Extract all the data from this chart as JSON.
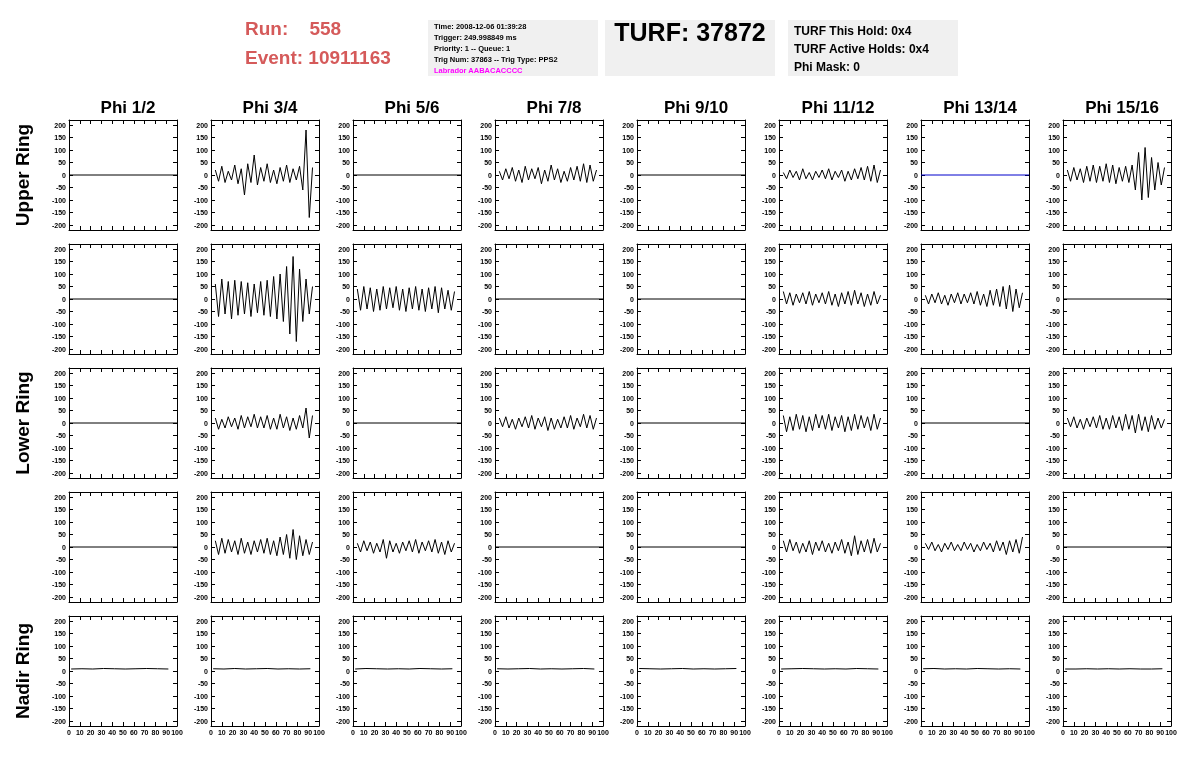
{
  "chart_data": [
    {
      "type": "line",
      "title": "Phi 1/2",
      "ylabel": "Upper Ring",
      "annotations": [
        "Run:    558",
        "Event: 10911163",
        "Time: 2008-12-06 01:39:28",
        "Trigger: 249.998849 ms",
        "Priority: 1 -- Queue: 1",
        "Trig Num: 37863 -- Trig Type: PPS2",
        "Labrador AABACACCCC",
        "TURF: 37872",
        "TURF This Hold: 0x4",
        "TURF Active Holds: 0x4",
        "Phi Mask: 0"
      ],
      "tick_labels": "y",
      "xlim": [
        0,
        100
      ],
      "xticks": [
        0,
        10,
        20,
        30,
        40,
        50,
        60,
        70,
        80,
        90,
        100
      ],
      "ylim": [
        -220,
        220
      ],
      "yticks": [
        -200,
        -150,
        -100,
        -50,
        0,
        50,
        100,
        150,
        200
      ],
      "color": "#000000",
      "x": [
        0,
        100
      ],
      "values": [
        0,
        0
      ]
    },
    {
      "type": "line",
      "title": "Phi 3/4",
      "tick_labels": "y",
      "xlim": [
        0,
        100
      ],
      "xticks": [
        0,
        10,
        20,
        30,
        40,
        50,
        60,
        70,
        80,
        90,
        100
      ],
      "ylim": [
        -220,
        220
      ],
      "yticks": [
        -200,
        -150,
        -100,
        -50,
        0,
        50,
        100,
        150,
        200
      ],
      "color": "#000000",
      "x": [
        4,
        7,
        10,
        13,
        16,
        19,
        22,
        25,
        28,
        31,
        34,
        37,
        40,
        43,
        46,
        49,
        52,
        55,
        58,
        61,
        64,
        67,
        70,
        73,
        76,
        79,
        82,
        85,
        88,
        91,
        94
      ],
      "values": [
        20,
        -25,
        35,
        -30,
        15,
        -20,
        40,
        -35,
        25,
        -80,
        45,
        -30,
        80,
        -40,
        30,
        -25,
        45,
        -30,
        20,
        -35,
        30,
        -25,
        40,
        -30,
        25,
        -20,
        35,
        -60,
        180,
        -170,
        30
      ]
    },
    {
      "type": "line",
      "title": "Phi 5/6",
      "tick_labels": "y",
      "xlim": [
        0,
        100
      ],
      "xticks": [
        0,
        10,
        20,
        30,
        40,
        50,
        60,
        70,
        80,
        90,
        100
      ],
      "ylim": [
        -220,
        220
      ],
      "yticks": [
        -200,
        -150,
        -100,
        -50,
        0,
        50,
        100,
        150,
        200
      ],
      "color": "#000000",
      "x": [
        0,
        100
      ],
      "values": [
        0,
        0
      ]
    },
    {
      "type": "line",
      "title": "Phi 7/8",
      "tick_labels": "y",
      "xlim": [
        0,
        100
      ],
      "xticks": [
        0,
        10,
        20,
        30,
        40,
        50,
        60,
        70,
        80,
        90,
        100
      ],
      "ylim": [
        -220,
        220
      ],
      "yticks": [
        -200,
        -150,
        -100,
        -50,
        0,
        50,
        100,
        150,
        200
      ],
      "color": "#000000",
      "x": [
        4,
        7,
        10,
        13,
        16,
        19,
        22,
        25,
        28,
        31,
        34,
        37,
        40,
        43,
        46,
        49,
        52,
        55,
        58,
        61,
        64,
        67,
        70,
        73,
        76,
        79,
        82,
        85,
        88,
        91,
        94
      ],
      "values": [
        15,
        -20,
        25,
        -15,
        30,
        -25,
        20,
        -30,
        35,
        -20,
        25,
        -15,
        30,
        -35,
        20,
        -25,
        40,
        -20,
        25,
        -30,
        15,
        -25,
        30,
        -20,
        35,
        -25,
        45,
        -30,
        40,
        -25,
        20
      ]
    },
    {
      "type": "line",
      "title": "Phi 9/10",
      "tick_labels": "y",
      "xlim": [
        0,
        100
      ],
      "xticks": [
        0,
        10,
        20,
        30,
        40,
        50,
        60,
        70,
        80,
        90,
        100
      ],
      "ylim": [
        -220,
        220
      ],
      "yticks": [
        -200,
        -150,
        -100,
        -50,
        0,
        50,
        100,
        150,
        200
      ],
      "color": "#000000",
      "x": [
        0,
        100
      ],
      "values": [
        0,
        0
      ]
    },
    {
      "type": "line",
      "title": "Phi 11/12",
      "tick_labels": "y",
      "xlim": [
        0,
        100
      ],
      "xticks": [
        0,
        10,
        20,
        30,
        40,
        50,
        60,
        70,
        80,
        90,
        100
      ],
      "ylim": [
        -220,
        220
      ],
      "yticks": [
        -200,
        -150,
        -100,
        -50,
        0,
        50,
        100,
        150,
        200
      ],
      "color": "#000000",
      "x": [
        4,
        7,
        10,
        13,
        16,
        19,
        22,
        25,
        28,
        31,
        34,
        37,
        40,
        43,
        46,
        49,
        52,
        55,
        58,
        61,
        64,
        67,
        70,
        73,
        76,
        79,
        82,
        85,
        88,
        91,
        94
      ],
      "values": [
        10,
        -15,
        20,
        -10,
        15,
        -20,
        25,
        -15,
        10,
        -20,
        15,
        -10,
        20,
        -15,
        25,
        -20,
        15,
        -10,
        20,
        -25,
        15,
        -20,
        25,
        -15,
        30,
        -20,
        35,
        -25,
        40,
        -30,
        20
      ]
    },
    {
      "type": "line",
      "title": "Phi 13/14",
      "tick_labels": "y",
      "xlim": [
        0,
        100
      ],
      "xticks": [
        0,
        10,
        20,
        30,
        40,
        50,
        60,
        70,
        80,
        90,
        100
      ],
      "ylim": [
        -220,
        220
      ],
      "yticks": [
        -200,
        -150,
        -100,
        -50,
        0,
        50,
        100,
        150,
        200
      ],
      "color": "#0000cc",
      "x": [
        0,
        100
      ],
      "values": [
        0,
        0
      ]
    },
    {
      "type": "line",
      "title": "Phi 15/16",
      "tick_labels": "y",
      "xlim": [
        0,
        100
      ],
      "xticks": [
        0,
        10,
        20,
        30,
        40,
        50,
        60,
        70,
        80,
        90,
        100
      ],
      "ylim": [
        -220,
        220
      ],
      "yticks": [
        -200,
        -150,
        -100,
        -50,
        0,
        50,
        100,
        150,
        200
      ],
      "color": "#000000",
      "x": [
        4,
        7,
        10,
        13,
        16,
        19,
        22,
        25,
        28,
        31,
        34,
        37,
        40,
        43,
        46,
        49,
        52,
        55,
        58,
        61,
        64,
        67,
        70,
        73,
        76,
        79,
        82,
        85,
        88,
        91,
        94
      ],
      "values": [
        20,
        -25,
        30,
        -20,
        25,
        -30,
        35,
        -25,
        40,
        -30,
        35,
        -25,
        45,
        -30,
        40,
        -35,
        30,
        -25,
        35,
        -30,
        40,
        -60,
        90,
        -100,
        110,
        -90,
        70,
        -60,
        50,
        -40,
        30
      ]
    },
    {
      "type": "line",
      "tick_labels": "y",
      "xlim": [
        0,
        100
      ],
      "xticks": [
        0,
        10,
        20,
        30,
        40,
        50,
        60,
        70,
        80,
        90,
        100
      ],
      "ylim": [
        -220,
        220
      ],
      "yticks": [
        -200,
        -150,
        -100,
        -50,
        0,
        50,
        100,
        150,
        200
      ],
      "color": "#000000",
      "x": [
        0,
        100
      ],
      "values": [
        0,
        0
      ]
    },
    {
      "type": "line",
      "tick_labels": "y",
      "xlim": [
        0,
        100
      ],
      "xticks": [
        0,
        10,
        20,
        30,
        40,
        50,
        60,
        70,
        80,
        90,
        100
      ],
      "ylim": [
        -220,
        220
      ],
      "yticks": [
        -200,
        -150,
        -100,
        -50,
        0,
        50,
        100,
        150,
        200
      ],
      "color": "#000000",
      "x": [
        4,
        7,
        10,
        13,
        16,
        19,
        22,
        25,
        28,
        31,
        34,
        37,
        40,
        43,
        46,
        49,
        52,
        55,
        58,
        61,
        64,
        67,
        70,
        73,
        76,
        79,
        82,
        85,
        88,
        91,
        94
      ],
      "values": [
        60,
        -70,
        80,
        -60,
        70,
        -80,
        75,
        -65,
        70,
        -60,
        65,
        -70,
        60,
        -55,
        70,
        -65,
        75,
        -70,
        90,
        -80,
        100,
        -90,
        130,
        -140,
        170,
        -170,
        120,
        -90,
        80,
        -60,
        50
      ]
    },
    {
      "type": "line",
      "tick_labels": "y",
      "xlim": [
        0,
        100
      ],
      "xticks": [
        0,
        10,
        20,
        30,
        40,
        50,
        60,
        70,
        80,
        90,
        100
      ],
      "ylim": [
        -220,
        220
      ],
      "yticks": [
        -200,
        -150,
        -100,
        -50,
        0,
        50,
        100,
        150,
        200
      ],
      "color": "#000000",
      "x": [
        4,
        7,
        10,
        13,
        16,
        19,
        22,
        25,
        28,
        31,
        34,
        37,
        40,
        43,
        46,
        49,
        52,
        55,
        58,
        61,
        64,
        67,
        70,
        73,
        76,
        79,
        82,
        85,
        88,
        91,
        94
      ],
      "values": [
        40,
        -45,
        50,
        -40,
        45,
        -50,
        40,
        -45,
        50,
        -40,
        45,
        -35,
        50,
        -45,
        40,
        -50,
        45,
        -40,
        50,
        -45,
        40,
        -50,
        45,
        -40,
        50,
        -55,
        45,
        -40,
        35,
        -45,
        30
      ]
    },
    {
      "type": "line",
      "tick_labels": "y",
      "xlim": [
        0,
        100
      ],
      "xticks": [
        0,
        10,
        20,
        30,
        40,
        50,
        60,
        70,
        80,
        90,
        100
      ],
      "ylim": [
        -220,
        220
      ],
      "yticks": [
        -200,
        -150,
        -100,
        -50,
        0,
        50,
        100,
        150,
        200
      ],
      "color": "#000000",
      "x": [
        0,
        100
      ],
      "values": [
        0,
        0
      ]
    },
    {
      "type": "line",
      "tick_labels": "y",
      "xlim": [
        0,
        100
      ],
      "xticks": [
        0,
        10,
        20,
        30,
        40,
        50,
        60,
        70,
        80,
        90,
        100
      ],
      "ylim": [
        -220,
        220
      ],
      "yticks": [
        -200,
        -150,
        -100,
        -50,
        0,
        50,
        100,
        150,
        200
      ],
      "color": "#000000",
      "x": [
        0,
        100
      ],
      "values": [
        0,
        0
      ]
    },
    {
      "type": "line",
      "tick_labels": "y",
      "xlim": [
        0,
        100
      ],
      "xticks": [
        0,
        10,
        20,
        30,
        40,
        50,
        60,
        70,
        80,
        90,
        100
      ],
      "ylim": [
        -220,
        220
      ],
      "yticks": [
        -200,
        -150,
        -100,
        -50,
        0,
        50,
        100,
        150,
        200
      ],
      "color": "#000000",
      "x": [
        4,
        7,
        10,
        13,
        16,
        19,
        22,
        25,
        28,
        31,
        34,
        37,
        40,
        43,
        46,
        49,
        52,
        55,
        58,
        61,
        64,
        67,
        70,
        73,
        76,
        79,
        82,
        85,
        88,
        91,
        94
      ],
      "values": [
        30,
        -20,
        25,
        -25,
        20,
        -15,
        25,
        -20,
        30,
        -25,
        20,
        -15,
        25,
        -20,
        30,
        -25,
        20,
        -30,
        25,
        -20,
        30,
        -25,
        35,
        -20,
        25,
        -30,
        20,
        -25,
        30,
        -20,
        15
      ]
    },
    {
      "type": "line",
      "tick_labels": "y",
      "xlim": [
        0,
        100
      ],
      "xticks": [
        0,
        10,
        20,
        30,
        40,
        50,
        60,
        70,
        80,
        90,
        100
      ],
      "ylim": [
        -220,
        220
      ],
      "yticks": [
        -200,
        -150,
        -100,
        -50,
        0,
        50,
        100,
        150,
        200
      ],
      "color": "#000000",
      "x": [
        4,
        7,
        10,
        13,
        16,
        19,
        22,
        25,
        28,
        31,
        34,
        37,
        40,
        43,
        46,
        49,
        52,
        55,
        58,
        61,
        64,
        67,
        70,
        73,
        76,
        79,
        82,
        85,
        88,
        91,
        94
      ],
      "values": [
        15,
        -20,
        20,
        -15,
        25,
        -20,
        15,
        -25,
        20,
        -15,
        25,
        -20,
        20,
        -15,
        25,
        -20,
        30,
        -25,
        20,
        -30,
        35,
        -25,
        40,
        -30,
        50,
        -40,
        55,
        -50,
        40,
        -35,
        25
      ]
    },
    {
      "type": "line",
      "tick_labels": "y",
      "xlim": [
        0,
        100
      ],
      "xticks": [
        0,
        10,
        20,
        30,
        40,
        50,
        60,
        70,
        80,
        90,
        100
      ],
      "ylim": [
        -220,
        220
      ],
      "yticks": [
        -200,
        -150,
        -100,
        -50,
        0,
        50,
        100,
        150,
        200
      ],
      "color": "#000000",
      "x": [
        0,
        100
      ],
      "values": [
        0,
        0
      ]
    },
    {
      "type": "line",
      "ylabel": "Lower Ring",
      "tick_labels": "y",
      "xlim": [
        0,
        100
      ],
      "xticks": [
        0,
        10,
        20,
        30,
        40,
        50,
        60,
        70,
        80,
        90,
        100
      ],
      "ylim": [
        -220,
        220
      ],
      "yticks": [
        -200,
        -150,
        -100,
        -50,
        0,
        50,
        100,
        150,
        200
      ],
      "color": "#000000",
      "x": [
        0,
        100
      ],
      "values": [
        0,
        0
      ]
    },
    {
      "type": "line",
      "tick_labels": "y",
      "xlim": [
        0,
        100
      ],
      "xticks": [
        0,
        10,
        20,
        30,
        40,
        50,
        60,
        70,
        80,
        90,
        100
      ],
      "ylim": [
        -220,
        220
      ],
      "yticks": [
        -200,
        -150,
        -100,
        -50,
        0,
        50,
        100,
        150,
        200
      ],
      "color": "#000000",
      "x": [
        4,
        7,
        10,
        13,
        16,
        19,
        22,
        25,
        28,
        31,
        34,
        37,
        40,
        43,
        46,
        49,
        52,
        55,
        58,
        61,
        64,
        67,
        70,
        73,
        76,
        79,
        82,
        85,
        88,
        91,
        94
      ],
      "values": [
        20,
        -25,
        15,
        -20,
        25,
        -15,
        20,
        -25,
        30,
        -20,
        25,
        -15,
        35,
        -20,
        25,
        -20,
        30,
        -25,
        20,
        -25,
        35,
        -20,
        25,
        -30,
        20,
        -25,
        30,
        -20,
        60,
        -60,
        30
      ]
    },
    {
      "type": "line",
      "tick_labels": "y",
      "xlim": [
        0,
        100
      ],
      "xticks": [
        0,
        10,
        20,
        30,
        40,
        50,
        60,
        70,
        80,
        90,
        100
      ],
      "ylim": [
        -220,
        220
      ],
      "yticks": [
        -200,
        -150,
        -100,
        -50,
        0,
        50,
        100,
        150,
        200
      ],
      "color": "#000000",
      "x": [
        0,
        100
      ],
      "values": [
        0,
        0
      ]
    },
    {
      "type": "line",
      "tick_labels": "y",
      "xlim": [
        0,
        100
      ],
      "xticks": [
        0,
        10,
        20,
        30,
        40,
        50,
        60,
        70,
        80,
        90,
        100
      ],
      "ylim": [
        -220,
        220
      ],
      "yticks": [
        -200,
        -150,
        -100,
        -50,
        0,
        50,
        100,
        150,
        200
      ],
      "color": "#000000",
      "x": [
        4,
        7,
        10,
        13,
        16,
        19,
        22,
        25,
        28,
        31,
        34,
        37,
        40,
        43,
        46,
        49,
        52,
        55,
        58,
        61,
        64,
        67,
        70,
        73,
        76,
        79,
        82,
        85,
        88,
        91,
        94
      ],
      "values": [
        20,
        -15,
        25,
        -20,
        15,
        -25,
        20,
        -15,
        25,
        -20,
        30,
        -25,
        20,
        -15,
        25,
        -30,
        20,
        -25,
        15,
        -20,
        25,
        -20,
        30,
        -25,
        20,
        -15,
        35,
        -20,
        30,
        -25,
        20
      ]
    },
    {
      "type": "line",
      "tick_labels": "y",
      "xlim": [
        0,
        100
      ],
      "xticks": [
        0,
        10,
        20,
        30,
        40,
        50,
        60,
        70,
        80,
        90,
        100
      ],
      "ylim": [
        -220,
        220
      ],
      "yticks": [
        -200,
        -150,
        -100,
        -50,
        0,
        50,
        100,
        150,
        200
      ],
      "color": "#000000",
      "x": [
        0,
        100
      ],
      "values": [
        0,
        0
      ]
    },
    {
      "type": "line",
      "tick_labels": "y",
      "xlim": [
        0,
        100
      ],
      "xticks": [
        0,
        10,
        20,
        30,
        40,
        50,
        60,
        70,
        80,
        90,
        100
      ],
      "ylim": [
        -220,
        220
      ],
      "yticks": [
        -200,
        -150,
        -100,
        -50,
        0,
        50,
        100,
        150,
        200
      ],
      "color": "#000000",
      "x": [
        4,
        7,
        10,
        13,
        16,
        19,
        22,
        25,
        28,
        31,
        34,
        37,
        40,
        43,
        46,
        49,
        52,
        55,
        58,
        61,
        64,
        67,
        70,
        73,
        76,
        79,
        82,
        85,
        88,
        91,
        94
      ],
      "values": [
        30,
        -35,
        25,
        -30,
        35,
        -25,
        30,
        -35,
        25,
        -30,
        35,
        -20,
        30,
        -25,
        35,
        -30,
        25,
        -20,
        30,
        -35,
        25,
        -30,
        35,
        -25,
        30,
        -20,
        25,
        -30,
        35,
        -25,
        20
      ]
    },
    {
      "type": "line",
      "tick_labels": "y",
      "xlim": [
        0,
        100
      ],
      "xticks": [
        0,
        10,
        20,
        30,
        40,
        50,
        60,
        70,
        80,
        90,
        100
      ],
      "ylim": [
        -220,
        220
      ],
      "yticks": [
        -200,
        -150,
        -100,
        -50,
        0,
        50,
        100,
        150,
        200
      ],
      "color": "#000000",
      "x": [
        0,
        100
      ],
      "values": [
        0,
        0
      ]
    },
    {
      "type": "line",
      "tick_labels": "y",
      "xlim": [
        0,
        100
      ],
      "xticks": [
        0,
        10,
        20,
        30,
        40,
        50,
        60,
        70,
        80,
        90,
        100
      ],
      "ylim": [
        -220,
        220
      ],
      "yticks": [
        -200,
        -150,
        -100,
        -50,
        0,
        50,
        100,
        150,
        200
      ],
      "color": "#000000",
      "x": [
        4,
        7,
        10,
        13,
        16,
        19,
        22,
        25,
        28,
        31,
        34,
        37,
        40,
        43,
        46,
        49,
        52,
        55,
        58,
        61,
        64,
        67,
        70,
        73,
        76,
        79,
        82,
        85,
        88,
        91,
        94
      ],
      "values": [
        20,
        -15,
        25,
        -20,
        15,
        -25,
        20,
        -15,
        25,
        -20,
        30,
        -25,
        20,
        -25,
        30,
        -20,
        25,
        -30,
        35,
        -25,
        30,
        -40,
        35,
        -30,
        25,
        -35,
        30,
        -25,
        20,
        -20,
        15
      ]
    },
    {
      "type": "line",
      "tick_labels": "y",
      "xlim": [
        0,
        100
      ],
      "xticks": [
        0,
        10,
        20,
        30,
        40,
        50,
        60,
        70,
        80,
        90,
        100
      ],
      "ylim": [
        -220,
        220
      ],
      "yticks": [
        -200,
        -150,
        -100,
        -50,
        0,
        50,
        100,
        150,
        200
      ],
      "color": "#000000",
      "x": [
        0,
        100
      ],
      "values": [
        0,
        0
      ]
    },
    {
      "type": "line",
      "tick_labels": "y",
      "xlim": [
        0,
        100
      ],
      "xticks": [
        0,
        10,
        20,
        30,
        40,
        50,
        60,
        70,
        80,
        90,
        100
      ],
      "ylim": [
        -220,
        220
      ],
      "yticks": [
        -200,
        -150,
        -100,
        -50,
        0,
        50,
        100,
        150,
        200
      ],
      "color": "#000000",
      "x": [
        4,
        7,
        10,
        13,
        16,
        19,
        22,
        25,
        28,
        31,
        34,
        37,
        40,
        43,
        46,
        49,
        52,
        55,
        58,
        61,
        64,
        67,
        70,
        73,
        76,
        79,
        82,
        85,
        88,
        91,
        94
      ],
      "values": [
        25,
        -30,
        35,
        -25,
        30,
        -20,
        25,
        -30,
        35,
        -25,
        20,
        -30,
        25,
        -20,
        30,
        -25,
        35,
        -30,
        25,
        -35,
        40,
        -30,
        50,
        -45,
        70,
        -50,
        45,
        -35,
        30,
        -30,
        20
      ]
    },
    {
      "type": "line",
      "tick_labels": "y",
      "xlim": [
        0,
        100
      ],
      "xticks": [
        0,
        10,
        20,
        30,
        40,
        50,
        60,
        70,
        80,
        90,
        100
      ],
      "ylim": [
        -220,
        220
      ],
      "yticks": [
        -200,
        -150,
        -100,
        -50,
        0,
        50,
        100,
        150,
        200
      ],
      "color": "#000000",
      "x": [
        4,
        7,
        10,
        13,
        16,
        19,
        22,
        25,
        28,
        31,
        34,
        37,
        40,
        43,
        46,
        49,
        52,
        55,
        58,
        61,
        64,
        67,
        70,
        73,
        76,
        79,
        82,
        85,
        88,
        91,
        94
      ],
      "values": [
        15,
        -20,
        25,
        -15,
        20,
        -25,
        15,
        -20,
        30,
        -45,
        25,
        -20,
        15,
        -25,
        20,
        -15,
        25,
        -20,
        30,
        -25,
        20,
        -15,
        25,
        -20,
        30,
        -25,
        20,
        -30,
        25,
        -20,
        15
      ]
    },
    {
      "type": "line",
      "tick_labels": "y",
      "xlim": [
        0,
        100
      ],
      "xticks": [
        0,
        10,
        20,
        30,
        40,
        50,
        60,
        70,
        80,
        90,
        100
      ],
      "ylim": [
        -220,
        220
      ],
      "yticks": [
        -200,
        -150,
        -100,
        -50,
        0,
        50,
        100,
        150,
        200
      ],
      "color": "#000000",
      "x": [
        0,
        100
      ],
      "values": [
        0,
        0
      ]
    },
    {
      "type": "line",
      "tick_labels": "y",
      "xlim": [
        0,
        100
      ],
      "xticks": [
        0,
        10,
        20,
        30,
        40,
        50,
        60,
        70,
        80,
        90,
        100
      ],
      "ylim": [
        -220,
        220
      ],
      "yticks": [
        -200,
        -150,
        -100,
        -50,
        0,
        50,
        100,
        150,
        200
      ],
      "color": "#000000",
      "x": [
        0,
        100
      ],
      "values": [
        0,
        0
      ]
    },
    {
      "type": "line",
      "tick_labels": "y",
      "xlim": [
        0,
        100
      ],
      "xticks": [
        0,
        10,
        20,
        30,
        40,
        50,
        60,
        70,
        80,
        90,
        100
      ],
      "ylim": [
        -220,
        220
      ],
      "yticks": [
        -200,
        -150,
        -100,
        -50,
        0,
        50,
        100,
        150,
        200
      ],
      "color": "#000000",
      "x": [
        4,
        7,
        10,
        13,
        16,
        19,
        22,
        25,
        28,
        31,
        34,
        37,
        40,
        43,
        46,
        49,
        52,
        55,
        58,
        61,
        64,
        67,
        70,
        73,
        76,
        79,
        82,
        85,
        88,
        91,
        94
      ],
      "values": [
        25,
        -20,
        30,
        -15,
        20,
        -25,
        15,
        -20,
        25,
        -30,
        20,
        -15,
        25,
        -20,
        15,
        -25,
        20,
        -15,
        30,
        -25,
        20,
        -35,
        45,
        -30,
        25,
        -20,
        30,
        -25,
        35,
        -20,
        15
      ]
    },
    {
      "type": "line",
      "tick_labels": "y",
      "xlim": [
        0,
        100
      ],
      "xticks": [
        0,
        10,
        20,
        30,
        40,
        50,
        60,
        70,
        80,
        90,
        100
      ],
      "ylim": [
        -220,
        220
      ],
      "yticks": [
        -200,
        -150,
        -100,
        -50,
        0,
        50,
        100,
        150,
        200
      ],
      "color": "#000000",
      "x": [
        4,
        7,
        10,
        13,
        16,
        19,
        22,
        25,
        28,
        31,
        34,
        37,
        40,
        43,
        46,
        49,
        52,
        55,
        58,
        61,
        64,
        67,
        70,
        73,
        76,
        79,
        82,
        85,
        88,
        91,
        94
      ],
      "values": [
        15,
        -10,
        20,
        -15,
        10,
        -20,
        15,
        -10,
        20,
        -15,
        10,
        -15,
        20,
        -10,
        15,
        -20,
        10,
        -15,
        20,
        -10,
        15,
        -20,
        25,
        -15,
        20,
        -30,
        25,
        -20,
        30,
        -25,
        40
      ]
    },
    {
      "type": "line",
      "tick_labels": "y",
      "xlim": [
        0,
        100
      ],
      "xticks": [
        0,
        10,
        20,
        30,
        40,
        50,
        60,
        70,
        80,
        90,
        100
      ],
      "ylim": [
        -220,
        220
      ],
      "yticks": [
        -200,
        -150,
        -100,
        -50,
        0,
        50,
        100,
        150,
        200
      ],
      "color": "#000000",
      "x": [
        0,
        100
      ],
      "values": [
        0,
        0
      ]
    },
    {
      "type": "line",
      "ylabel": "Nadir Ring",
      "xlim": [
        0,
        100
      ],
      "xticks": [
        0,
        10,
        20,
        30,
        40,
        50,
        60,
        70,
        80,
        90,
        100
      ],
      "ylim": [
        -220,
        220
      ],
      "yticks": [
        -200,
        -150,
        -100,
        -50,
        0,
        50,
        100,
        150,
        200
      ],
      "color": "#000000",
      "x": [
        2,
        12,
        22,
        32,
        42,
        52,
        62,
        72,
        82,
        92
      ],
      "values": [
        8,
        9,
        8,
        10,
        9,
        8,
        9,
        10,
        9,
        8
      ]
    },
    {
      "type": "line",
      "xlim": [
        0,
        100
      ],
      "xticks": [
        0,
        10,
        20,
        30,
        40,
        50,
        60,
        70,
        80,
        90,
        100
      ],
      "ylim": [
        -220,
        220
      ],
      "yticks": [
        -200,
        -150,
        -100,
        -50,
        0,
        50,
        100,
        150,
        200
      ],
      "color": "#000000",
      "x": [
        2,
        12,
        22,
        32,
        42,
        52,
        62,
        72,
        82,
        92
      ],
      "values": [
        9,
        8,
        10,
        8,
        9,
        10,
        8,
        9,
        8,
        9
      ]
    },
    {
      "type": "line",
      "xlim": [
        0,
        100
      ],
      "xticks": [
        0,
        10,
        20,
        30,
        40,
        50,
        60,
        70,
        80,
        90,
        100
      ],
      "ylim": [
        -220,
        220
      ],
      "yticks": [
        -200,
        -150,
        -100,
        -50,
        0,
        50,
        100,
        150,
        200
      ],
      "color": "#000000",
      "x": [
        2,
        12,
        22,
        32,
        42,
        52,
        62,
        72,
        82,
        92
      ],
      "values": [
        8,
        10,
        9,
        8,
        9,
        8,
        10,
        9,
        8,
        9
      ]
    },
    {
      "type": "line",
      "xlim": [
        0,
        100
      ],
      "xticks": [
        0,
        10,
        20,
        30,
        40,
        50,
        60,
        70,
        80,
        90,
        100
      ],
      "ylim": [
        -220,
        220
      ],
      "yticks": [
        -200,
        -150,
        -100,
        -50,
        0,
        50,
        100,
        150,
        200
      ],
      "color": "#000000",
      "x": [
        2,
        12,
        22,
        32,
        42,
        52,
        62,
        72,
        82,
        92
      ],
      "values": [
        9,
        8,
        9,
        10,
        8,
        9,
        8,
        9,
        10,
        8
      ]
    },
    {
      "type": "line",
      "xlim": [
        0,
        100
      ],
      "xticks": [
        0,
        10,
        20,
        30,
        40,
        50,
        60,
        70,
        80,
        90,
        100
      ],
      "ylim": [
        -220,
        220
      ],
      "yticks": [
        -200,
        -150,
        -100,
        -50,
        0,
        50,
        100,
        150,
        200
      ],
      "color": "#000000",
      "x": [
        2,
        12,
        22,
        32,
        42,
        52,
        62,
        72,
        82,
        92
      ],
      "values": [
        10,
        9,
        8,
        9,
        10,
        8,
        9,
        8,
        9,
        10
      ]
    },
    {
      "type": "line",
      "xlim": [
        0,
        100
      ],
      "xticks": [
        0,
        10,
        20,
        30,
        40,
        50,
        60,
        70,
        80,
        90,
        100
      ],
      "ylim": [
        -220,
        220
      ],
      "yticks": [
        -200,
        -150,
        -100,
        -50,
        0,
        50,
        100,
        150,
        200
      ],
      "color": "#000000",
      "x": [
        2,
        12,
        22,
        32,
        42,
        52,
        62,
        72,
        82,
        92
      ],
      "values": [
        8,
        9,
        10,
        9,
        8,
        9,
        8,
        10,
        9,
        8
      ]
    },
    {
      "type": "line",
      "xlim": [
        0,
        100
      ],
      "xticks": [
        0,
        10,
        20,
        30,
        40,
        50,
        60,
        70,
        80,
        90,
        100
      ],
      "ylim": [
        -220,
        220
      ],
      "yticks": [
        -200,
        -150,
        -100,
        -50,
        0,
        50,
        100,
        150,
        200
      ],
      "color": "#000000",
      "x": [
        2,
        12,
        22,
        32,
        42,
        52,
        62,
        72,
        82,
        92
      ],
      "values": [
        9,
        10,
        8,
        9,
        8,
        10,
        9,
        8,
        9,
        8
      ]
    },
    {
      "type": "line",
      "xlim": [
        0,
        100
      ],
      "xticks": [
        0,
        10,
        20,
        30,
        40,
        50,
        60,
        70,
        80,
        90,
        100
      ],
      "ylim": [
        -220,
        220
      ],
      "yticks": [
        -200,
        -150,
        -100,
        -50,
        0,
        50,
        100,
        150,
        200
      ],
      "color": "#000000",
      "x": [
        2,
        12,
        22,
        32,
        42,
        52,
        62,
        72,
        82,
        92
      ],
      "values": [
        8,
        8,
        9,
        8,
        9,
        8,
        9,
        8,
        8,
        9
      ]
    }
  ]
}
